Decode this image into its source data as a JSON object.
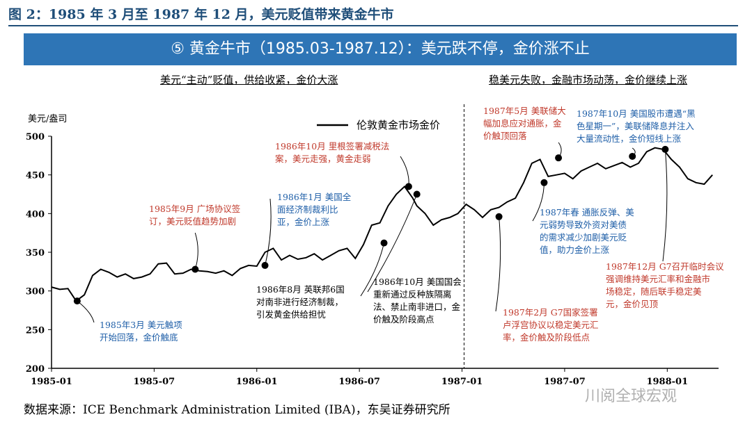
{
  "figure_title": "图 2：1985 年 3 月至 1987 年 12 月，美元贬值带来黄金牛市",
  "banner": "⑤ 黄金牛市（1985.03-1987.12）：美元跌不停，金价涨不止",
  "subtitle_left": "美元“主动”贬值，供给收紧，金价大涨",
  "subtitle_right": "稳美元失败，金融市场动荡，金价继续上涨",
  "source": "数据来源：ICE Benchmark Administration Limited (IBA)，东吴证券研究所",
  "watermark": "川阅全球宏观",
  "colors": {
    "red": "#c0392b",
    "blue": "#1f5fa8",
    "black": "#000000",
    "banner": "#2e75b6"
  },
  "chart_data": {
    "type": "line",
    "ylabel": "美元/盎司",
    "ylim": [
      200,
      500
    ],
    "yticks": [
      200,
      250,
      300,
      350,
      400,
      450,
      500
    ],
    "xlim": [
      1985.0,
      1988.25
    ],
    "xticks": [
      {
        "v": 1985.0,
        "label": "1985-01"
      },
      {
        "v": 1985.5,
        "label": "1985-07"
      },
      {
        "v": 1986.0,
        "label": "1986-01"
      },
      {
        "v": 1986.5,
        "label": "1986-07"
      },
      {
        "v": 1987.0,
        "label": "1987-01"
      },
      {
        "v": 1987.5,
        "label": "1987-07"
      },
      {
        "v": 1988.0,
        "label": "1988-01"
      }
    ],
    "divider_x": 1987.01,
    "series": [
      {
        "name": "伦敦黄金市场金价",
        "x": [
          1985.0,
          1985.04,
          1985.08,
          1985.12,
          1985.16,
          1985.2,
          1985.24,
          1985.28,
          1985.32,
          1985.36,
          1985.4,
          1985.44,
          1985.48,
          1985.52,
          1985.56,
          1985.6,
          1985.64,
          1985.68,
          1985.72,
          1985.76,
          1985.8,
          1985.84,
          1985.88,
          1985.92,
          1985.96,
          1986.0,
          1986.04,
          1986.08,
          1986.12,
          1986.16,
          1986.2,
          1986.24,
          1986.28,
          1986.32,
          1986.36,
          1986.4,
          1986.44,
          1986.48,
          1986.52,
          1986.56,
          1986.6,
          1986.64,
          1986.68,
          1986.72,
          1986.76,
          1986.78,
          1986.82,
          1986.86,
          1986.9,
          1986.94,
          1986.98,
          1987.02,
          1987.06,
          1987.1,
          1987.14,
          1987.18,
          1987.22,
          1987.26,
          1987.3,
          1987.34,
          1987.38,
          1987.42,
          1987.46,
          1987.5,
          1987.54,
          1987.58,
          1987.62,
          1987.66,
          1987.7,
          1987.74,
          1987.78,
          1987.82,
          1987.86,
          1987.9,
          1987.94,
          1987.98,
          1988.02,
          1988.06,
          1988.1,
          1988.14,
          1988.18,
          1988.22
        ],
        "y": [
          305,
          302,
          303,
          287,
          295,
          320,
          328,
          324,
          318,
          322,
          316,
          318,
          322,
          335,
          336,
          322,
          323,
          328,
          326,
          325,
          323,
          326,
          320,
          329,
          333,
          332,
          350,
          355,
          340,
          346,
          341,
          343,
          348,
          340,
          346,
          352,
          355,
          342,
          360,
          385,
          388,
          410,
          425,
          435,
          420,
          410,
          400,
          385,
          392,
          395,
          400,
          412,
          405,
          395,
          405,
          408,
          415,
          420,
          440,
          465,
          470,
          448,
          450,
          452,
          445,
          455,
          460,
          465,
          458,
          462,
          466,
          460,
          465,
          480,
          485,
          483,
          470,
          460,
          445,
          440,
          438,
          450
        ]
      }
    ],
    "annotations": [
      {
        "x": 1985.125,
        "y": 287,
        "text": [
          "1985年3月  美元触项",
          "开始回落，金价触底"
        ],
        "color": "blue"
      },
      {
        "x": 1985.7,
        "y": 328,
        "text": [
          "1985年9月 广场协议签",
          "订，美元贬值趋势加剧"
        ],
        "color": "red"
      },
      {
        "x": 1986.04,
        "y": 333,
        "text": [
          "1986年1月  美国全",
          "面经济制裁利比",
          "亚，金价上涨"
        ],
        "color": "blue"
      },
      {
        "x": 1986.62,
        "y": 362,
        "text": [
          "1986年8月  英联邦6国",
          "对南非进行经济制裁，",
          "引发黄金供给担忧"
        ],
        "color": "black"
      },
      {
        "x": 1986.74,
        "y": 435,
        "text": [
          "1986年10月  里根签署减税法",
          "案，美元走强，黄金走弱"
        ],
        "color": "red"
      },
      {
        "x": 1986.78,
        "y": 425,
        "text": [
          "1986年10月  美国国会",
          "重新通过反种族隔离",
          "法、禁止南非进口，金",
          "价触及阶段高点"
        ],
        "color": "black"
      },
      {
        "x": 1987.18,
        "y": 396,
        "text": [
          "1987年2月  G7国家签署",
          "卢浮宫协议以稳定美元汇",
          "率，金价触及阶段低点"
        ],
        "color": "red"
      },
      {
        "x": 1987.4,
        "y": 440,
        "text": [
          "1987年春  通胀反弹、美",
          "元弱势导致外资对美债",
          "的需求减少加剧美元贬",
          "值，助力金价上涨"
        ],
        "color": "blue"
      },
      {
        "x": 1987.47,
        "y": 472,
        "text": [
          "1987年5月  美联储大",
          "幅加息应对通胀，金",
          "价触顶回落"
        ],
        "color": "red"
      },
      {
        "x": 1987.83,
        "y": 474,
        "text": [
          "1987年10月  美国股市遭遇“黑",
          "色星期一”，美联储降息并注入",
          "大量流动性，金价短线上涨"
        ],
        "color": "blue"
      },
      {
        "x": 1987.99,
        "y": 483,
        "text": [
          "1987年12月  G7召开临时会议",
          "强调维持美元汇率和金融市",
          "场稳定，随后联手稳定美",
          "元，金价见顶"
        ],
        "color": "red"
      }
    ]
  }
}
